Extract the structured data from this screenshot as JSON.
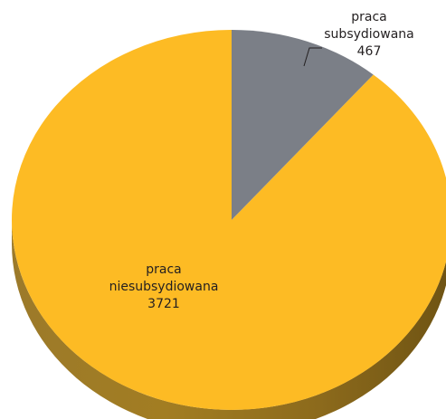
{
  "chart_data": {
    "type": "pie",
    "style": "3d",
    "slices": [
      {
        "label_lines": [
          "praca",
          "niesubsydiowana"
        ],
        "value": 3721,
        "value_text": "3721",
        "color": "#fdbb24",
        "side_color": "#9c7a2a"
      },
      {
        "label_lines": [
          "praca",
          "subsydiowana"
        ],
        "value": 467,
        "value_text": "467",
        "color": "#7b7f87",
        "side_color": "#4d5056"
      }
    ]
  }
}
